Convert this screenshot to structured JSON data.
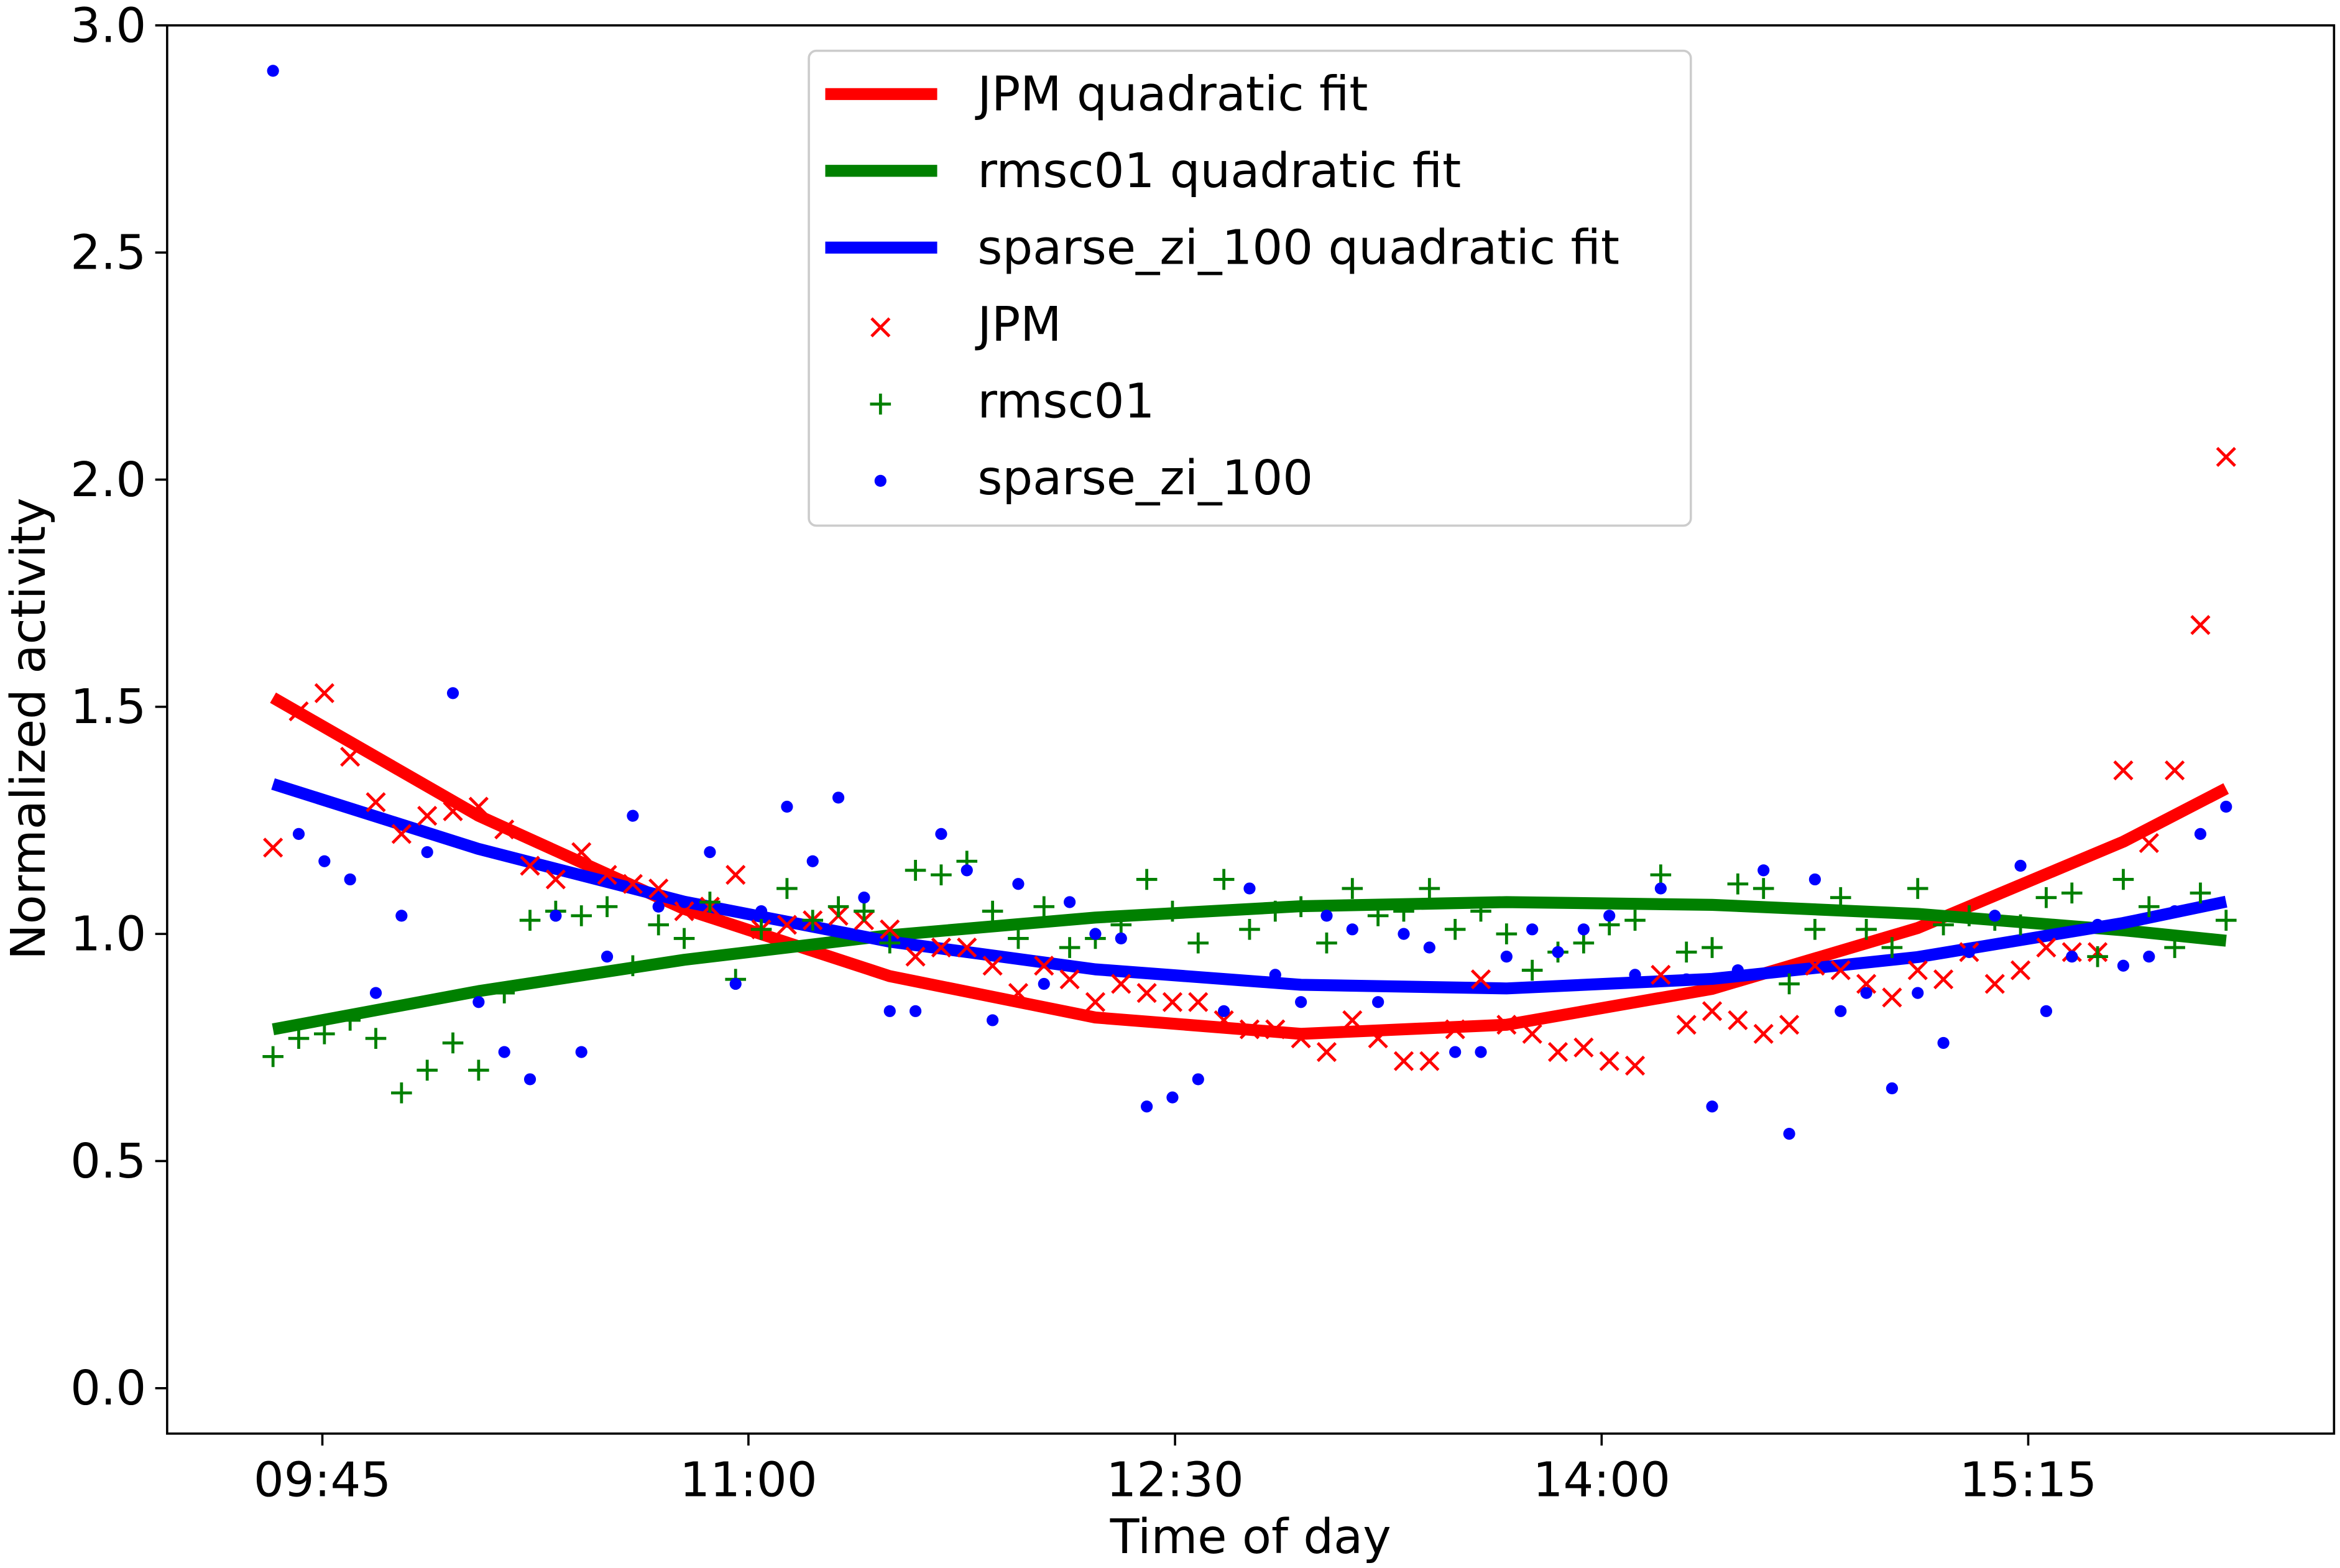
{
  "chart_data": {
    "type": "scatter",
    "xlabel": "Time of day",
    "ylabel": "Normalized activity",
    "xlim": [
      -4.12,
      80.2
    ],
    "ylim": [
      -0.1,
      3.0
    ],
    "xticks": [
      {
        "value": 1.92,
        "label": "09:45"
      },
      {
        "value": 18.5,
        "label": "11:00"
      },
      {
        "value": 35.1,
        "label": "12:30"
      },
      {
        "value": 51.7,
        "label": "14:00"
      },
      {
        "value": 68.3,
        "label": "15:15"
      }
    ],
    "yticks": [
      {
        "value": 0,
        "label": "0.0"
      },
      {
        "value": 0.5,
        "label": "0.5"
      },
      {
        "value": 1,
        "label": "1.0"
      },
      {
        "value": 1.5,
        "label": "1.5"
      },
      {
        "value": 2,
        "label": "2.0"
      },
      {
        "value": 2.5,
        "label": "2.5"
      },
      {
        "value": 3,
        "label": "3.0"
      }
    ],
    "legend": "upper center",
    "x": [
      0,
      1,
      2,
      3,
      4,
      5,
      6,
      7,
      8,
      9,
      10,
      11,
      12,
      13,
      14,
      15,
      16,
      17,
      18,
      19,
      20,
      21,
      22,
      23,
      24,
      25,
      26,
      27,
      28,
      29,
      30,
      31,
      32,
      33,
      34,
      35,
      36,
      37,
      38,
      39,
      40,
      41,
      42,
      43,
      44,
      45,
      46,
      47,
      48,
      49,
      50,
      51,
      52,
      53,
      54,
      55,
      56,
      57,
      58,
      59,
      60,
      61,
      62,
      63,
      64,
      65,
      66,
      67,
      68,
      69,
      70,
      71,
      72,
      73,
      74,
      75,
      76
    ],
    "series": [
      {
        "name": "JPM quadratic fit",
        "kind": "line",
        "color": "#ff0000",
        "x": [
          0,
          8,
          16,
          24,
          32,
          40,
          48,
          56,
          64,
          72,
          76
        ],
        "values": [
          1.52,
          1.26,
          1.055,
          0.907,
          0.816,
          0.78,
          0.8,
          0.879,
          1.013,
          1.203,
          1.32
        ]
      },
      {
        "name": "rmsc01 quadratic fit",
        "kind": "line",
        "color": "#008000",
        "x": [
          0,
          8,
          16,
          24,
          32,
          40,
          48,
          56,
          64,
          72,
          76
        ],
        "values": [
          0.79,
          0.874,
          0.943,
          0.997,
          1.036,
          1.061,
          1.07,
          1.064,
          1.044,
          1.008,
          0.985
        ]
      },
      {
        "name": "sparse_zi_100 quadratic fit",
        "kind": "line",
        "color": "#0000ff",
        "x": [
          0,
          8,
          16,
          24,
          32,
          40,
          48,
          56,
          64,
          72,
          76
        ],
        "values": [
          1.33,
          1.187,
          1.071,
          0.983,
          0.922,
          0.888,
          0.88,
          0.901,
          0.949,
          1.024,
          1.071
        ]
      },
      {
        "name": "JPM",
        "kind": "x",
        "color": "#ff0000",
        "values": [
          1.19,
          1.49,
          1.53,
          1.39,
          1.29,
          1.22,
          1.26,
          1.27,
          1.28,
          1.23,
          1.15,
          1.12,
          1.18,
          1.13,
          1.11,
          1.1,
          1.05,
          1.06,
          1.13,
          1.01,
          1.02,
          1.03,
          1.04,
          1.03,
          1.01,
          0.95,
          0.97,
          0.97,
          0.93,
          0.87,
          0.93,
          0.9,
          0.85,
          0.89,
          0.87,
          0.85,
          0.85,
          0.81,
          0.79,
          0.79,
          0.77,
          0.74,
          0.81,
          0.77,
          0.72,
          0.72,
          0.79,
          0.9,
          0.8,
          0.78,
          0.74,
          0.75,
          0.72,
          0.71,
          0.91,
          0.8,
          0.83,
          0.81,
          0.78,
          0.8,
          0.93,
          0.92,
          0.89,
          0.86,
          0.92,
          0.9,
          0.96,
          0.89,
          0.92,
          0.97,
          0.96,
          0.96,
          1.36,
          1.2,
          1.36,
          1.68,
          2.05
        ]
      },
      {
        "name": "rmsc01",
        "kind": "plus",
        "color": "#008000",
        "values": [
          0.73,
          0.77,
          0.78,
          0.81,
          0.77,
          0.65,
          0.7,
          0.76,
          0.7,
          0.87,
          1.03,
          1.05,
          1.04,
          1.06,
          0.93,
          1.02,
          0.99,
          1.07,
          0.9,
          1.01,
          1.1,
          1.03,
          1.06,
          1.05,
          0.98,
          1.14,
          1.13,
          1.16,
          1.05,
          0.99,
          1.06,
          0.97,
          0.99,
          1.02,
          1.12,
          1.05,
          0.98,
          1.12,
          1.01,
          1.05,
          1.06,
          0.98,
          1.1,
          1.04,
          1.05,
          1.1,
          1.01,
          1.05,
          1.0,
          0.92,
          0.96,
          0.98,
          1.02,
          1.03,
          1.13,
          0.96,
          0.97,
          1.11,
          1.1,
          0.89,
          1.01,
          1.08,
          1.01,
          0.97,
          1.1,
          1.02,
          1.04,
          1.03,
          1.02,
          1.08,
          1.09,
          0.95,
          1.12,
          1.06,
          0.97,
          1.09,
          1.03
        ]
      },
      {
        "name": "sparse_zi_100",
        "kind": "dot",
        "color": "#0000ff",
        "values": [
          2.9,
          1.22,
          1.16,
          1.12,
          0.87,
          1.04,
          1.18,
          1.53,
          0.85,
          0.74,
          0.68,
          1.04,
          0.74,
          0.95,
          1.26,
          1.06,
          1.07,
          1.18,
          0.89,
          1.05,
          1.28,
          1.16,
          1.3,
          1.08,
          0.83,
          0.83,
          1.22,
          1.14,
          0.81,
          1.11,
          0.89,
          1.07,
          1.0,
          0.99,
          0.62,
          0.64,
          0.68,
          0.83,
          1.1,
          0.91,
          0.85,
          1.04,
          1.01,
          0.85,
          1.0,
          0.97,
          0.74,
          0.74,
          0.95,
          1.01,
          0.96,
          1.01,
          1.04,
          0.91,
          1.1,
          0.9,
          0.62,
          0.92,
          1.14,
          0.56,
          1.12,
          0.83,
          0.87,
          0.66,
          0.87,
          0.76,
          0.96,
          1.04,
          1.15,
          0.83,
          0.95,
          1.02,
          0.93,
          0.95,
          1.05,
          1.22,
          1.28
        ]
      }
    ]
  }
}
